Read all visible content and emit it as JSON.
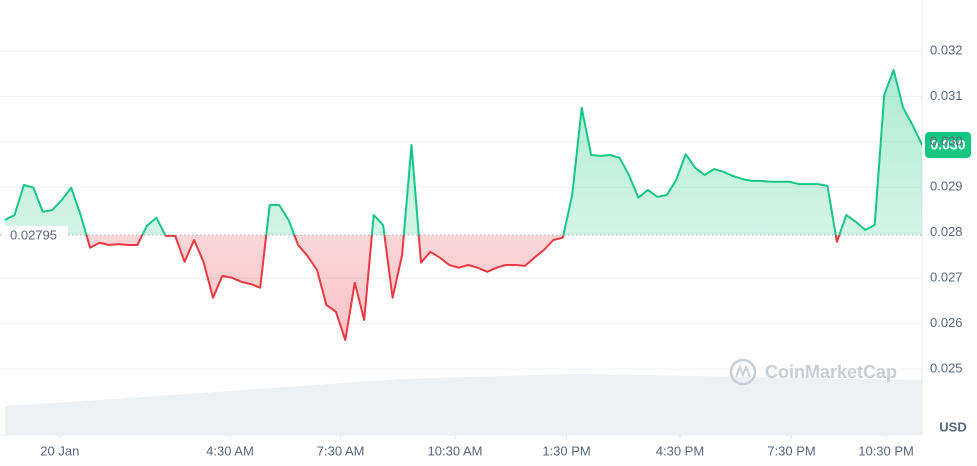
{
  "chart_data": {
    "type": "line",
    "series": [
      {
        "name": "Price",
        "color_up": "#16c784",
        "color_down": "#ea3943",
        "values": [
          0.02828,
          0.02839,
          0.02905,
          0.02899,
          0.02846,
          0.0285,
          0.02872,
          0.02899,
          0.02839,
          0.02767,
          0.02778,
          0.02773,
          0.02775,
          0.02773,
          0.02773,
          0.02815,
          0.02833,
          0.02793,
          0.02793,
          0.02736,
          0.02784,
          0.02736,
          0.02657,
          0.02705,
          0.02701,
          0.02692,
          0.02687,
          0.02679,
          0.02861,
          0.02861,
          0.02828,
          0.02773,
          0.02749,
          0.02718,
          0.02641,
          0.02626,
          0.02564,
          0.0269,
          0.02608,
          0.02839,
          0.02817,
          0.02657,
          0.02751,
          0.02993,
          0.02734,
          0.02758,
          0.02745,
          0.02729,
          0.02723,
          0.02729,
          0.02723,
          0.02714,
          0.02723,
          0.02729,
          0.02729,
          0.02727,
          0.02745,
          0.02762,
          0.02784,
          0.02789,
          0.02883,
          0.03075,
          0.02971,
          0.02969,
          0.02971,
          0.02965,
          0.02927,
          0.02877,
          0.02894,
          0.02879,
          0.02883,
          0.02916,
          0.02973,
          0.02943,
          0.02927,
          0.0294,
          0.02934,
          0.02925,
          0.02918,
          0.02914,
          0.02914,
          0.02912,
          0.02912,
          0.02912,
          0.02907,
          0.02907,
          0.02907,
          0.02903,
          0.0278,
          0.02839,
          0.02824,
          0.02806,
          0.02817,
          0.03103,
          0.03158,
          0.03075,
          0.03037,
          0.02993
        ]
      }
    ],
    "baseline": 0.02795,
    "last_label": "0.030",
    "xlim": [
      0,
      97
    ],
    "xticks": [
      {
        "value": 5.8,
        "label": "20 Jan"
      },
      {
        "value": 23.8,
        "label": "4:30 AM"
      },
      {
        "value": 35.5,
        "label": "7:30 AM"
      },
      {
        "value": 47.6,
        "label": "10:30 AM"
      },
      {
        "value": 59.4,
        "label": "1:30 PM"
      },
      {
        "value": 71.4,
        "label": "4:30 PM"
      },
      {
        "value": 83.2,
        "label": "7:30 PM"
      },
      {
        "value": 93.2,
        "label": "10:30 PM"
      }
    ],
    "ylim": [
      0.02355,
      0.03301
    ],
    "yticks": [
      0.025,
      0.026,
      0.027,
      0.028,
      0.029,
      {
        "value": 0.03,
        "label": "0.030"
      },
      0.031,
      0.032
    ],
    "y_unit": "USD",
    "watermark": "CoinMarketCap",
    "grid": true
  }
}
